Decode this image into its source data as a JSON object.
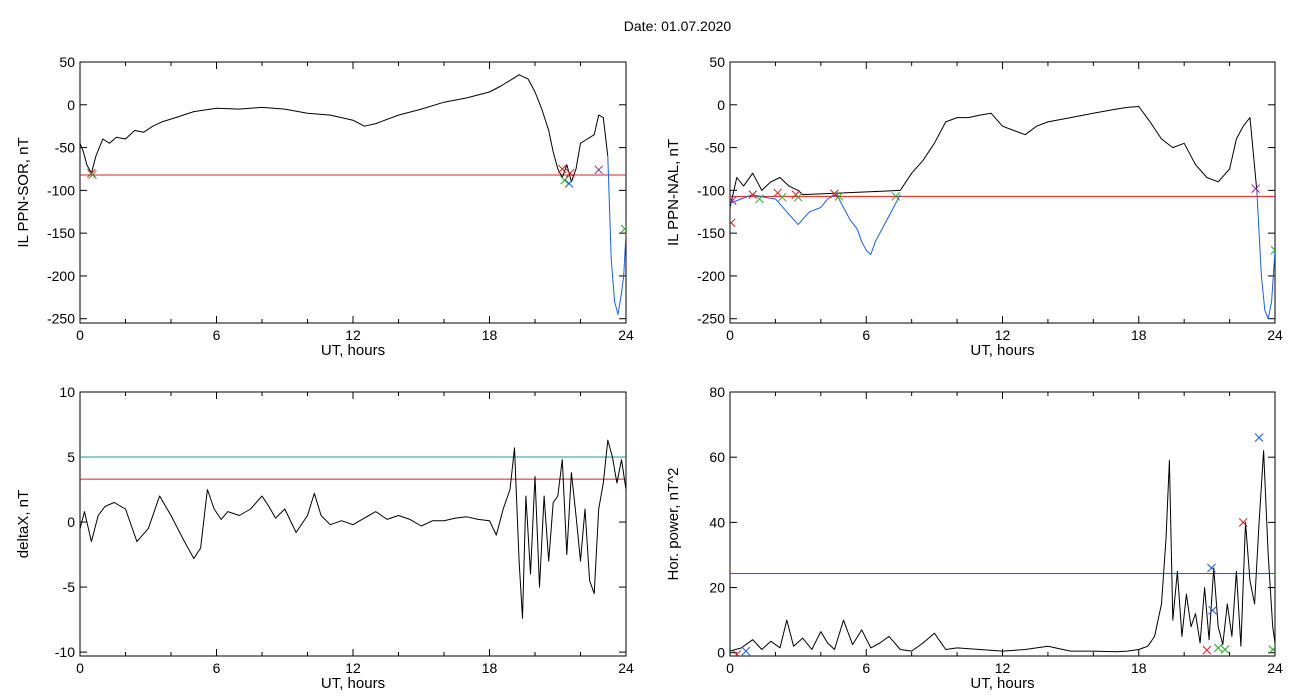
{
  "header": {
    "title": "Date:  01.07.2020"
  },
  "chart_data": [
    {
      "type": "line",
      "ylabel": "IL PPN-SOR, nT",
      "xlabel": "UT, hours",
      "xlim": [
        0,
        24
      ],
      "ylim": [
        -255,
        50
      ],
      "xticks": [
        0,
        6,
        12,
        18,
        24
      ],
      "yticks": [
        50,
        0,
        -50,
        -100,
        -150,
        -200,
        -250
      ],
      "grid": false,
      "series": [
        {
          "color": "#000000",
          "x": [
            0,
            0.15,
            0.3,
            0.5,
            0.7,
            1.0,
            1.3,
            1.6,
            2.0,
            2.4,
            2.8,
            3.2,
            3.6,
            4.2,
            5.0,
            6.0,
            7.0,
            8.0,
            9.0,
            10.0,
            11.0,
            12.0,
            12.5,
            13.0,
            14.0,
            15.0,
            16.0,
            17.0,
            18.0,
            18.5,
            19.0,
            19.3,
            19.7,
            20.0,
            20.3,
            20.6,
            20.8,
            21.0,
            21.2,
            21.4,
            21.6,
            21.8,
            22.0,
            22.3,
            22.6,
            22.8,
            23.0,
            23.2
          ],
          "y": [
            -45,
            -55,
            -70,
            -80,
            -60,
            -40,
            -45,
            -38,
            -40,
            -30,
            -32,
            -25,
            -20,
            -15,
            -8,
            -4,
            -5,
            -3,
            -5,
            -10,
            -12,
            -18,
            -25,
            -22,
            -12,
            -5,
            3,
            8,
            15,
            22,
            30,
            35,
            30,
            15,
            -5,
            -30,
            -55,
            -75,
            -85,
            -70,
            -90,
            -75,
            -45,
            -40,
            -35,
            -12,
            -15,
            -60
          ]
        },
        {
          "color": "#1a5fd6",
          "x": [
            23.2,
            23.35,
            23.5,
            23.65,
            23.8,
            23.9,
            24.0
          ],
          "y": [
            -60,
            -180,
            -230,
            -245,
            -220,
            -200,
            -150
          ]
        }
      ],
      "threshold": {
        "color": "#d42020",
        "y": -82
      },
      "markers": [
        {
          "color": "#d42020",
          "x": 0.5,
          "y": -80
        },
        {
          "color": "#2aa82a",
          "x": 0.55,
          "y": -82
        },
        {
          "color": "#d42020",
          "x": 21.2,
          "y": -75
        },
        {
          "color": "#2aa82a",
          "x": 21.3,
          "y": -88
        },
        {
          "color": "#1a5fd6",
          "x": 21.5,
          "y": -92
        },
        {
          "color": "#d42020",
          "x": 21.55,
          "y": -80
        },
        {
          "color": "#8a2a8a",
          "x": 22.8,
          "y": -76
        },
        {
          "color": "#2aa82a",
          "x": 23.95,
          "y": -145
        }
      ]
    },
    {
      "type": "line",
      "ylabel": "IL PPN-NAL, nT",
      "xlabel": "UT, hours",
      "xlim": [
        0,
        24
      ],
      "ylim": [
        -255,
        50
      ],
      "xticks": [
        0,
        6,
        12,
        18,
        24
      ],
      "yticks": [
        50,
        0,
        -50,
        -100,
        -150,
        -200,
        -250
      ],
      "grid": false,
      "series": [
        {
          "color": "#000000",
          "x": [
            0,
            0.3,
            0.6,
            1.0,
            1.4,
            1.8,
            2.2,
            2.6,
            3.0,
            3.2,
            7.5,
            8.0,
            8.5,
            9.0,
            9.5,
            10.0,
            10.5,
            11.0,
            11.5,
            12.0,
            12.5,
            13.0,
            13.5,
            14.0,
            15.0,
            16.0,
            17.0,
            17.5,
            18.0,
            18.5,
            19.0,
            19.5,
            20.0,
            20.5,
            21.0,
            21.5,
            22.0,
            22.3,
            22.6,
            22.9,
            23.2
          ],
          "y": [
            -120,
            -85,
            -95,
            -80,
            -100,
            -90,
            -85,
            -95,
            -100,
            -105,
            -100,
            -80,
            -65,
            -45,
            -20,
            -15,
            -15,
            -12,
            -10,
            -25,
            -30,
            -35,
            -25,
            -20,
            -15,
            -10,
            -5,
            -3,
            -2,
            -20,
            -40,
            -50,
            -45,
            -70,
            -85,
            -90,
            -75,
            -40,
            -25,
            -15,
            -100
          ]
        },
        {
          "color": "#1a5fd6",
          "x": [
            0,
            0.5,
            1.0,
            1.5,
            2.0,
            2.5,
            3.0,
            3.5,
            4.0,
            4.3,
            4.7,
            5.0,
            5.3,
            5.6,
            5.8,
            6.0,
            6.2,
            6.4,
            6.8,
            7.2,
            7.5
          ],
          "y": [
            -115,
            -110,
            -105,
            -108,
            -110,
            -125,
            -140,
            -125,
            -120,
            -110,
            -105,
            -120,
            -135,
            -145,
            -160,
            -170,
            -175,
            -160,
            -140,
            -120,
            -105
          ]
        },
        {
          "color": "#1a5fd6",
          "x": [
            23.2,
            23.4,
            23.55,
            23.7,
            23.85,
            24.0
          ],
          "y": [
            -100,
            -200,
            -240,
            -250,
            -230,
            -170
          ]
        }
      ],
      "threshold": {
        "color": "#d42020",
        "y": -107
      },
      "markers": [
        {
          "color": "#d42020",
          "x": 0.05,
          "y": -138
        },
        {
          "color": "#8a2a8a",
          "x": 0.1,
          "y": -112
        },
        {
          "color": "#d42020",
          "x": 1.0,
          "y": -105
        },
        {
          "color": "#2aa82a",
          "x": 1.3,
          "y": -110
        },
        {
          "color": "#d42020",
          "x": 2.1,
          "y": -103
        },
        {
          "color": "#2aa82a",
          "x": 2.3,
          "y": -108
        },
        {
          "color": "#d42020",
          "x": 2.9,
          "y": -105
        },
        {
          "color": "#2aa82a",
          "x": 3.0,
          "y": -108
        },
        {
          "color": "#d42020",
          "x": 4.6,
          "y": -104
        },
        {
          "color": "#2aa82a",
          "x": 4.8,
          "y": -107
        },
        {
          "color": "#2aa82a",
          "x": 7.3,
          "y": -107
        },
        {
          "color": "#8a2a8a",
          "x": 23.15,
          "y": -98
        },
        {
          "color": "#2aa82a",
          "x": 24.0,
          "y": -170
        }
      ]
    },
    {
      "type": "line",
      "ylabel": "deltaX, nT",
      "xlabel": "UT, hours",
      "xlim": [
        0,
        24
      ],
      "ylim": [
        -10.3,
        10
      ],
      "xticks": [
        0,
        6,
        12,
        18,
        24
      ],
      "yticks": [
        10,
        5,
        0,
        -5,
        -10
      ],
      "grid": false,
      "series": [
        {
          "color": "#000000",
          "x": [
            0,
            0.2,
            0.5,
            0.8,
            1.1,
            1.5,
            2.0,
            2.5,
            3.0,
            3.5,
            4.0,
            4.5,
            5.0,
            5.3,
            5.6,
            5.9,
            6.2,
            6.5,
            7.0,
            7.5,
            8.0,
            8.3,
            8.6,
            9.0,
            9.5,
            10.0,
            10.3,
            10.6,
            11.0,
            11.5,
            12.0,
            12.5,
            13.0,
            13.5,
            14.0,
            14.5,
            15.0,
            15.5,
            16.0,
            16.5,
            17.0,
            17.5,
            18.0,
            18.3,
            18.6,
            18.9,
            19.1,
            19.3,
            19.45,
            19.6,
            19.8,
            20.0,
            20.2,
            20.4,
            20.6,
            20.8,
            21.0,
            21.2,
            21.4,
            21.6,
            21.8,
            22.0,
            22.2,
            22.4,
            22.6,
            22.8,
            23.0,
            23.2,
            23.4,
            23.6,
            23.8,
            24.0
          ],
          "y": [
            -0.5,
            0.8,
            -1.5,
            0.5,
            1.2,
            1.5,
            1.0,
            -1.5,
            -0.5,
            2.0,
            0.5,
            -1.2,
            -2.8,
            -2.0,
            2.5,
            1.0,
            0.2,
            0.8,
            0.5,
            1.0,
            2.0,
            1.2,
            0.3,
            1.0,
            -0.8,
            0.5,
            2.2,
            0.5,
            -0.2,
            0.1,
            -0.2,
            0.3,
            0.8,
            0.2,
            0.5,
            0.2,
            -0.3,
            0.1,
            0.1,
            0.3,
            0.4,
            0.2,
            0.1,
            -1.0,
            1.0,
            2.5,
            5.7,
            -3.0,
            -7.4,
            2.0,
            -4.0,
            3.5,
            -5.0,
            2.0,
            -3.0,
            1.5,
            2.0,
            4.8,
            -2.5,
            3.8,
            0.5,
            -3.0,
            1.0,
            -4.5,
            -5.5,
            1.0,
            3.0,
            6.3,
            5.0,
            3.0,
            4.8,
            2.5
          ]
        }
      ],
      "thresholds": [
        {
          "color": "#2a9a8a",
          "y": 5.0
        },
        {
          "color": "#d42020",
          "y": 3.3
        }
      ]
    },
    {
      "type": "line",
      "ylabel": "Hor. power, nT^2",
      "xlabel": "UT, hours",
      "xlim": [
        0,
        24
      ],
      "ylim": [
        -1,
        80
      ],
      "xticks": [
        0,
        6,
        12,
        18,
        24
      ],
      "yticks": [
        80,
        60,
        40,
        20,
        0
      ],
      "grid": false,
      "series": [
        {
          "color": "#000000",
          "x": [
            0,
            0.5,
            1.0,
            1.4,
            1.8,
            2.2,
            2.5,
            2.8,
            3.2,
            3.6,
            4.0,
            4.3,
            4.6,
            5.0,
            5.4,
            5.8,
            6.2,
            6.6,
            7.0,
            7.5,
            8.0,
            8.5,
            9.0,
            9.5,
            10.0,
            11.0,
            12.0,
            13.0,
            14.0,
            15.0,
            16.0,
            17.0,
            17.5,
            18.0,
            18.4,
            18.7,
            19.0,
            19.2,
            19.35,
            19.5,
            19.7,
            19.9,
            20.1,
            20.3,
            20.5,
            20.7,
            20.9,
            21.1,
            21.3,
            21.5,
            21.7,
            21.9,
            22.1,
            22.3,
            22.5,
            22.7,
            22.9,
            23.1,
            23.3,
            23.5,
            23.7,
            23.9,
            24.0
          ],
          "y": [
            0.5,
            1.5,
            4.0,
            1.0,
            3.5,
            1.5,
            10.0,
            2.0,
            4.5,
            1.0,
            6.5,
            3.0,
            1.0,
            10.0,
            2.5,
            7.0,
            1.5,
            3.0,
            5.0,
            1.0,
            0.5,
            3.0,
            6.0,
            1.0,
            1.5,
            1.0,
            0.5,
            1.0,
            2.0,
            0.5,
            0.5,
            0.3,
            0.5,
            1.0,
            2.0,
            5.0,
            15.0,
            35.0,
            59.0,
            10.0,
            25.0,
            5.0,
            18.0,
            8.0,
            12.0,
            3.0,
            20.0,
            4.0,
            26.0,
            8.0,
            2.5,
            15.0,
            5.0,
            25.0,
            2.0,
            40.0,
            22.0,
            15.0,
            40.0,
            62.0,
            30.0,
            8.0,
            3.0
          ]
        }
      ],
      "threshold": {
        "color": "#d42020",
        "y": 24.3
      },
      "markers": [
        {
          "color": "#d42020",
          "x": 0.3,
          "y": -0.5
        },
        {
          "color": "#1a5fd6",
          "x": 0.7,
          "y": 0.5
        },
        {
          "color": "#1a5fd6",
          "x": 21.2,
          "y": 26.0
        },
        {
          "color": "#1a5fd6",
          "x": 21.25,
          "y": 13.0
        },
        {
          "color": "#d42020",
          "x": 21.0,
          "y": 0.8
        },
        {
          "color": "#2aa82a",
          "x": 21.5,
          "y": 1.5
        },
        {
          "color": "#2aa82a",
          "x": 21.8,
          "y": 1.0
        },
        {
          "color": "#d42020",
          "x": 22.6,
          "y": 40.0
        },
        {
          "color": "#1a5fd6",
          "x": 23.3,
          "y": 66.0
        },
        {
          "color": "#2aa82a",
          "x": 23.9,
          "y": 1.0
        }
      ]
    }
  ]
}
